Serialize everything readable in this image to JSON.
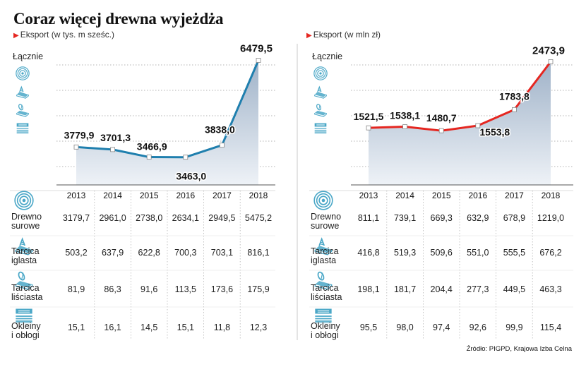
{
  "header": {
    "title": "Coraz więcej drewna wyjeżdża",
    "source": "Źródło: PIGPD, Krajowa Izba Celna"
  },
  "legend": {
    "total_label": "Łącznie",
    "rows": [
      {
        "line1": "Drewno",
        "line2": "surowe",
        "icon": "log-rings-icon"
      },
      {
        "line1": "Tarcica",
        "line2": "iglasta",
        "icon": "softwood-lumber-icon"
      },
      {
        "line1": "Tarcica",
        "line2": "liściasta",
        "icon": "hardwood-lumber-icon"
      },
      {
        "line1": "Okleiny",
        "line2": "i obłogi",
        "icon": "veneer-sheet-icon"
      }
    ]
  },
  "colors": {
    "left_line": "#1f7fae",
    "right_line": "#e52620",
    "area_top": "#9fb2c8",
    "area_bottom": "#eef2f7",
    "icon": "#4aa7c7",
    "accent": "#e52620"
  },
  "chart_data": [
    {
      "type": "area",
      "title": "Eksport (w tys. m sześc.)",
      "categories": [
        "2013",
        "2014",
        "2015",
        "2016",
        "2017",
        "2018"
      ],
      "series": [
        {
          "name": "Łącznie",
          "values": [
            3779.9,
            3701.3,
            3466.9,
            3463.0,
            3838.0,
            6479.5
          ]
        }
      ],
      "value_labels": [
        "3779,9",
        "3701,3",
        "3466,9",
        "3463,0",
        "3838,0",
        "6479,5"
      ],
      "ylim": [
        2600,
        6600
      ],
      "table": {
        "headers": [
          "2013",
          "2014",
          "2015",
          "2016",
          "2017",
          "2018"
        ],
        "rows": [
          {
            "name": "Drewno surowe",
            "values": [
              "3179,7",
              "2961,0",
              "2738,0",
              "2634,1",
              "2949,5",
              "5475,2"
            ]
          },
          {
            "name": "Tarcica iglasta",
            "values": [
              "503,2",
              "637,9",
              "622,8",
              "700,3",
              "703,1",
              "816,1"
            ]
          },
          {
            "name": "Tarcica liściasta",
            "values": [
              "81,9",
              "86,3",
              "91,6",
              "113,5",
              "173,6",
              "175,9"
            ]
          },
          {
            "name": "Okleiny i obłogi",
            "values": [
              "15,1",
              "16,1",
              "14,5",
              "15,1",
              "11,8",
              "12,3"
            ]
          }
        ]
      }
    },
    {
      "type": "area",
      "title": "Eksport (w mln zł)",
      "categories": [
        "2013",
        "2014",
        "2015",
        "2016",
        "2017",
        "2018"
      ],
      "series": [
        {
          "name": "Łącznie",
          "values": [
            1521.5,
            1538.1,
            1480.7,
            1553.8,
            1783.8,
            2473.9
          ]
        }
      ],
      "value_labels": [
        "1521,5",
        "1538,1",
        "1480,7",
        "1553,8",
        "1783,8",
        "2473,9"
      ],
      "ylim": [
        700,
        2550
      ],
      "table": {
        "headers": [
          "2013",
          "2014",
          "2015",
          "2016",
          "2017",
          "2018"
        ],
        "rows": [
          {
            "name": "Drewno surowe",
            "values": [
              "811,1",
              "739,1",
              "669,3",
              "632,9",
              "678,9",
              "1219,0"
            ]
          },
          {
            "name": "Tarcica iglasta",
            "values": [
              "416,8",
              "519,3",
              "509,6",
              "551,0",
              "555,5",
              "676,2"
            ]
          },
          {
            "name": "Tarcica liściasta",
            "values": [
              "198,1",
              "181,7",
              "204,4",
              "277,3",
              "449,5",
              "463,3"
            ]
          },
          {
            "name": "Okleiny i obłogi",
            "values": [
              "95,5",
              "98,0",
              "97,4",
              "92,6",
              "99,9",
              "115,4"
            ]
          }
        ]
      }
    }
  ]
}
